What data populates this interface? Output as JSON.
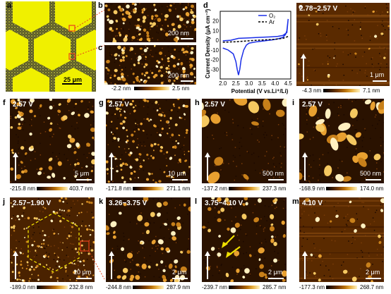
{
  "panels": {
    "a": {
      "label": "a",
      "scale": "25 μm"
    },
    "b": {
      "label": "b",
      "scale": "200 nm"
    },
    "c": {
      "label": "c",
      "scale": "200 nm",
      "cmin": "-2.2 nm",
      "cmax": "2.5 nm"
    },
    "d": {
      "label": "d"
    },
    "e": {
      "label": "e",
      "voltage": "2.78−2.57 V",
      "scale": "1 μm",
      "cmin": "-4.3 nm",
      "cmax": "7.1 nm"
    },
    "f": {
      "label": "f",
      "voltage": "2.57 V",
      "scale": "5 μm",
      "cmin": "-215.8 nm",
      "cmax": "403.7 nm"
    },
    "g": {
      "label": "g",
      "voltage": "2.57 V",
      "scale": "10 μm",
      "cmin": "-171.8 nm",
      "cmax": "271.1 nm"
    },
    "h": {
      "label": "h",
      "voltage": "2.57 V",
      "scale": "500 nm",
      "cmin": "-137.2 nm",
      "cmax": "237.3 nm"
    },
    "i": {
      "label": "i",
      "voltage": "2.57 V",
      "scale": "500 nm",
      "cmin": "-168.9 nm",
      "cmax": "174.0 nm"
    },
    "j": {
      "label": "j",
      "voltage": "2.57−1.90 V",
      "scale": "10 μm",
      "cmin": "-189.0 nm",
      "cmax": "232.8 nm"
    },
    "k": {
      "label": "k",
      "voltage": "3.26−3.75 V",
      "scale": "2 μm",
      "cmin": "-244.8 nm",
      "cmax": "287.9 nm"
    },
    "l": {
      "label": "l",
      "voltage": "3.75−4.10 V",
      "scale": "2 μm",
      "cmin": "-239.7 nm",
      "cmax": "285.7 nm"
    },
    "m": {
      "label": "m",
      "voltage": "4.10 V",
      "scale": "2 μm",
      "cmin": "-177.3 nm",
      "cmax": "268.7 nm"
    }
  },
  "chart_data": {
    "type": "line",
    "xlabel": "Potential (V vs.Li⁺/Li)",
    "ylabel": "Current Density (μA cm⁻²)",
    "xlim": [
      1.9,
      4.6
    ],
    "ylim": [
      -40,
      30
    ],
    "xticks": [
      "2.0",
      "2.5",
      "3.0",
      "3.5",
      "4.0",
      "4.5"
    ],
    "yticks": [
      "-30",
      "-20",
      "-10",
      "0",
      "10",
      "20"
    ],
    "legend_position": "top-right",
    "series": [
      {
        "name": "O₂",
        "color": "#1a2ee8",
        "style": "solid",
        "x": [
          2.0,
          2.2,
          2.4,
          2.5,
          2.55,
          2.6,
          2.65,
          2.7,
          2.8,
          2.9,
          3.0,
          3.3,
          3.6,
          3.9,
          4.1,
          4.3,
          4.4,
          4.45,
          4.5,
          4.45,
          4.3,
          4.1,
          3.8,
          3.4,
          3.0,
          2.6,
          2.3,
          2.0
        ],
        "y": [
          -8,
          -10,
          -14,
          -22,
          -30,
          -36,
          -30,
          -20,
          -10,
          -5,
          -3,
          -1.5,
          -0.5,
          0.5,
          1.5,
          3,
          6,
          10,
          22,
          8,
          5,
          4,
          3.5,
          3,
          2.5,
          2,
          0,
          -0.5
        ]
      },
      {
        "name": "Ar",
        "color": "#000000",
        "style": "dashed",
        "x": [
          2.0,
          2.5,
          3.0,
          3.5,
          4.0,
          4.3,
          4.5
        ],
        "y": [
          -2,
          -1.5,
          -0.5,
          0.3,
          1.0,
          2.0,
          4.0
        ]
      }
    ]
  }
}
